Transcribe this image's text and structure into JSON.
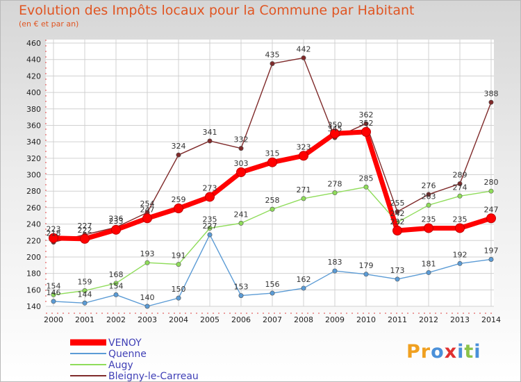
{
  "title": "Evolution des Impôts locaux pour la Commune par Habitant",
  "subtitle": "(en € et par an)",
  "logo": "Proxiti",
  "chart_data": {
    "type": "line",
    "title": "Evolution des Impôts locaux pour la Commune par Habitant",
    "subtitle": "(en € et par an)",
    "x": [
      2000,
      2001,
      2002,
      2003,
      2004,
      2005,
      2006,
      2007,
      2008,
      2009,
      2010,
      2011,
      2012,
      2013,
      2014
    ],
    "ylim": [
      140,
      460
    ],
    "yticks": [
      140,
      160,
      180,
      200,
      220,
      240,
      260,
      280,
      300,
      320,
      340,
      360,
      380,
      400,
      420,
      440,
      460
    ],
    "grid": true,
    "legend_position": "bottom-left",
    "series": [
      {
        "name": "VENOY",
        "color": "#ff0000",
        "values": [
          223,
          222,
          233,
          247,
          259,
          273,
          303,
          315,
          323,
          350,
          352,
          232,
          235,
          235,
          247
        ]
      },
      {
        "name": "Quenne",
        "color": "#5b9bd5",
        "values": [
          146,
          144,
          154,
          140,
          150,
          227,
          153,
          156,
          162,
          183,
          179,
          173,
          181,
          192,
          197
        ]
      },
      {
        "name": "Augy",
        "color": "#8fdc5a",
        "values": [
          154,
          159,
          168,
          193,
          191,
          235,
          241,
          258,
          271,
          278,
          285,
          242,
          263,
          274,
          280
        ]
      },
      {
        "name": "Bleigny-le-Carreau",
        "color": "#7f2a2a",
        "values": [
          218,
          227,
          236,
          254,
          324,
          341,
          332,
          435,
          442,
          345,
          362,
          255,
          276,
          289,
          388
        ]
      }
    ]
  }
}
